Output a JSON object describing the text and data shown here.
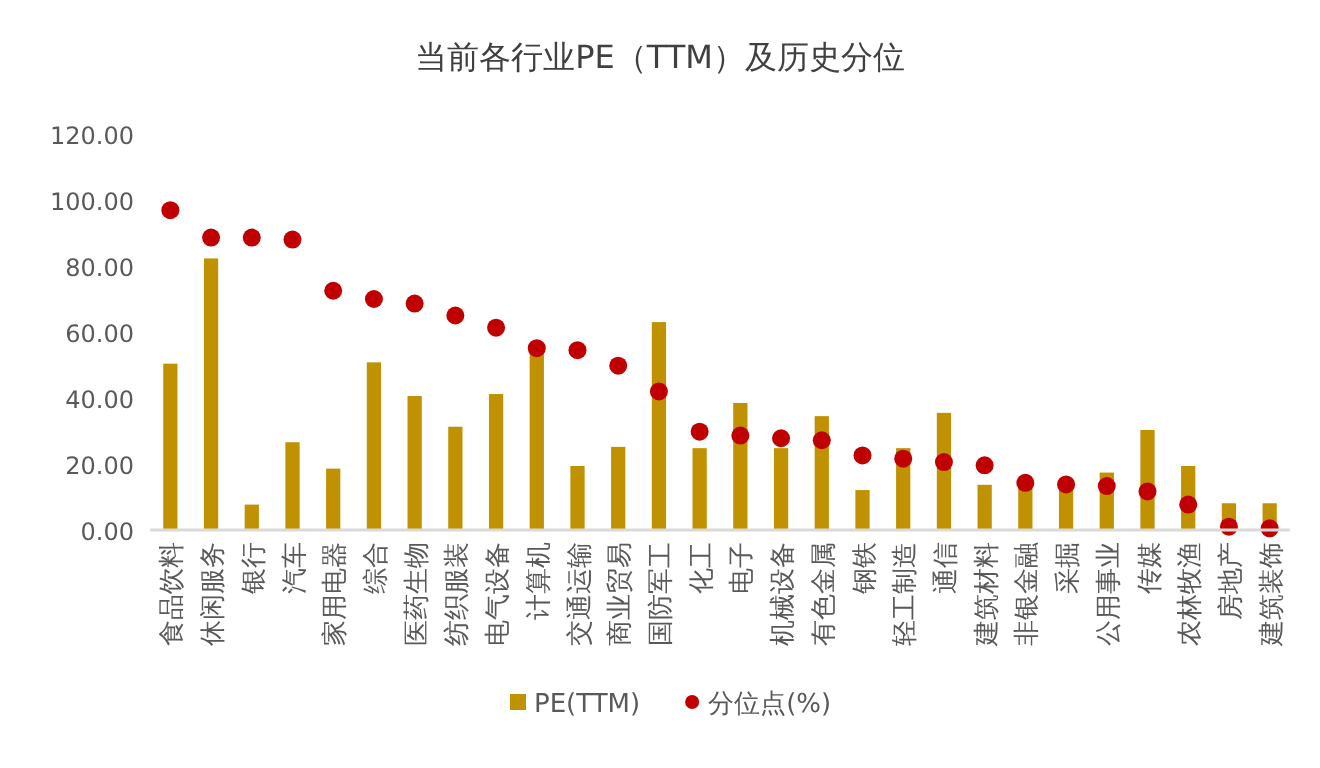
{
  "chart_data": {
    "type": "bar",
    "title": "当前各行业PE（TTM）及历史分位",
    "categories": [
      "食品饮料",
      "休闲服务",
      "银行",
      "汽车",
      "家用电器",
      "综合",
      "医药生物",
      "纺织服装",
      "电气设备",
      "计算机",
      "交通运输",
      "商业贸易",
      "国防军工",
      "化工",
      "电子",
      "机械设备",
      "有色金属",
      "钢铁",
      "轻工制造",
      "通信",
      "建筑材料",
      "非银金融",
      "采掘",
      "公用事业",
      "传媒",
      "农林牧渔",
      "房地产",
      "建筑装饰"
    ],
    "series": [
      {
        "name": "PE(TTM)",
        "color": "#c09100",
        "values": [
          50.4,
          82.3,
          7.7,
          26.6,
          18.6,
          50.8,
          40.6,
          31.3,
          41.2,
          54.5,
          19.4,
          25.2,
          63.0,
          24.8,
          38.5,
          24.8,
          34.5,
          12.1,
          24.8,
          35.5,
          13.7,
          13.7,
          13.5,
          17.4,
          30.3,
          19.4,
          8.1,
          8.1
        ]
      },
      {
        "name": "分位点(%)",
        "type": "scatter",
        "marker": "circle",
        "color": "#c00000",
        "values": [
          96.9,
          88.6,
          88.6,
          88.0,
          72.5,
          70.0,
          68.6,
          65.0,
          61.3,
          55.1,
          54.5,
          49.8,
          42.0,
          29.8,
          28.6,
          27.8,
          27.2,
          22.6,
          21.6,
          20.6,
          19.6,
          14.3,
          13.8,
          13.3,
          11.7,
          7.7,
          1.0,
          0.5
        ]
      }
    ],
    "ylim": [
      0,
      120
    ],
    "yticks": [
      {
        "value": 0,
        "label": "0.00"
      },
      {
        "value": 20,
        "label": "20.00"
      },
      {
        "value": 40,
        "label": "40.00"
      },
      {
        "value": 60,
        "label": "60.00"
      },
      {
        "value": 80,
        "label": "80.00"
      },
      {
        "value": 100,
        "label": "100.00"
      },
      {
        "value": 120,
        "label": "120.00"
      }
    ],
    "grid": false,
    "legend": "bottom"
  }
}
